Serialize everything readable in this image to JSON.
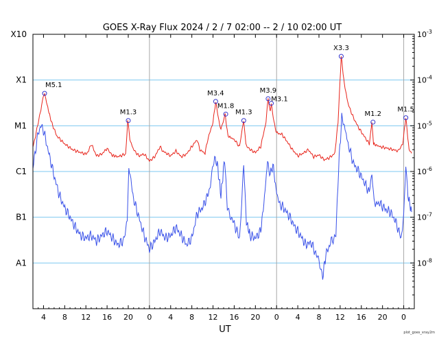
{
  "chart_data": {
    "type": "line",
    "title": "GOES X-Ray Flux   2024 /  2 /  7   02:00 --  2 / 10   02:00   UT",
    "xlabel": "UT",
    "ylabel": "",
    "credit": "plot_goes_xray2m",
    "x_unit": "hours since 2024-02-07 00:00 UT",
    "xlim": [
      2,
      74
    ],
    "x_ticks": [
      {
        "x": 4,
        "label": "4"
      },
      {
        "x": 8,
        "label": "8"
      },
      {
        "x": 12,
        "label": "12"
      },
      {
        "x": 16,
        "label": "16"
      },
      {
        "x": 20,
        "label": "20"
      },
      {
        "x": 24,
        "label": "0"
      },
      {
        "x": 28,
        "label": "4"
      },
      {
        "x": 32,
        "label": "8"
      },
      {
        "x": 36,
        "label": "12"
      },
      {
        "x": 40,
        "label": "16"
      },
      {
        "x": 44,
        "label": "20"
      },
      {
        "x": 48,
        "label": "0"
      },
      {
        "x": 52,
        "label": "4"
      },
      {
        "x": 56,
        "label": "8"
      },
      {
        "x": 60,
        "label": "12"
      },
      {
        "x": 64,
        "label": "16"
      },
      {
        "x": 68,
        "label": "20"
      },
      {
        "x": 72,
        "label": "0"
      }
    ],
    "day_boundaries": [
      24,
      48,
      72
    ],
    "y_scale": "log",
    "ylim": [
      1e-09,
      0.001
    ],
    "y_left_classes": [
      {
        "value": 1e-08,
        "label": "A1"
      },
      {
        "value": 1e-07,
        "label": "B1"
      },
      {
        "value": 1e-06,
        "label": "C1"
      },
      {
        "value": 1e-05,
        "label": "M1"
      },
      {
        "value": 0.0001,
        "label": "X1"
      },
      {
        "value": 0.001,
        "label": "X10"
      }
    ],
    "y_right_ticks": [
      {
        "value": 0.001,
        "base": "10",
        "exp": "-3"
      },
      {
        "value": 0.0001,
        "base": "10",
        "exp": "-4"
      },
      {
        "value": 1e-05,
        "base": "10",
        "exp": "-5"
      },
      {
        "value": 1e-06,
        "base": "10",
        "exp": "-6"
      },
      {
        "value": 1e-07,
        "base": "10",
        "exp": "-7"
      },
      {
        "value": 1e-08,
        "base": "10",
        "exp": "-8"
      }
    ],
    "grid": {
      "horizontal": true,
      "horizontal_color": "#7ec8f0",
      "vertical_color": "#a8a8a8"
    },
    "series": [
      {
        "color": "#e8231a",
        "points": [
          [
            2,
            3.5e-06
          ],
          [
            2.5,
            6e-06
          ],
          [
            3,
            1.2e-05
          ],
          [
            3.5,
            2.2e-05
          ],
          [
            3.8,
            3.5e-05
          ],
          [
            4.2,
            5.1e-05
          ],
          [
            4.8,
            2.5e-05
          ],
          [
            5.5,
            1.2e-05
          ],
          [
            6.5,
            6e-06
          ],
          [
            8,
            4e-06
          ],
          [
            9.5,
            3e-06
          ],
          [
            11,
            2.6e-06
          ],
          [
            12,
            2.4e-06
          ],
          [
            12.5,
            2.8e-06
          ],
          [
            13,
            4e-06
          ],
          [
            13.5,
            3e-06
          ],
          [
            14,
            2.2e-06
          ],
          [
            15,
            2.4e-06
          ],
          [
            16,
            3.2e-06
          ],
          [
            16.8,
            2.3e-06
          ],
          [
            18,
            2.1e-06
          ],
          [
            19.5,
            2.4e-06
          ],
          [
            19.9,
            1.3e-05
          ],
          [
            20.3,
            5e-06
          ],
          [
            21,
            3e-06
          ],
          [
            22,
            2.2e-06
          ],
          [
            23,
            2.4e-06
          ],
          [
            24,
            1.7e-06
          ],
          [
            25,
            2.1e-06
          ],
          [
            26,
            3.5e-06
          ],
          [
            26.5,
            2.8e-06
          ],
          [
            28,
            2.2e-06
          ],
          [
            29,
            2.8e-06
          ],
          [
            30,
            2.1e-06
          ],
          [
            31,
            2.4e-06
          ],
          [
            32,
            3.5e-06
          ],
          [
            33,
            5e-06
          ],
          [
            33.5,
            3e-06
          ],
          [
            34.5,
            2.5e-06
          ],
          [
            35,
            5e-06
          ],
          [
            36,
            1.2e-05
          ],
          [
            36.5,
            3.4e-05
          ],
          [
            37,
            1.5e-05
          ],
          [
            37.5,
            8e-06
          ],
          [
            38.3,
            1.8e-05
          ],
          [
            38.8,
            6e-06
          ],
          [
            40,
            5e-06
          ],
          [
            41,
            3.5e-06
          ],
          [
            41.8,
            1.3e-05
          ],
          [
            42.2,
            4e-06
          ],
          [
            43,
            3e-06
          ],
          [
            44,
            2.6e-06
          ],
          [
            45,
            3.5e-06
          ],
          [
            46,
            1.2e-05
          ],
          [
            46.4,
            3.9e-05
          ],
          [
            46.8,
            2e-05
          ],
          [
            47,
            3.1e-05
          ],
          [
            47.5,
            1.2e-05
          ],
          [
            48,
            7e-06
          ],
          [
            49,
            6.5e-06
          ],
          [
            50,
            4.5e-06
          ],
          [
            51,
            3e-06
          ],
          [
            52,
            2.2e-06
          ],
          [
            53,
            2.5e-06
          ],
          [
            54,
            3e-06
          ],
          [
            55,
            2.1e-06
          ],
          [
            56,
            2.3e-06
          ],
          [
            57,
            1.8e-06
          ],
          [
            58,
            2e-06
          ],
          [
            59,
            2.5e-06
          ],
          [
            59.6,
            1.2e-05
          ],
          [
            60.2,
            0.00033
          ],
          [
            60.8,
            8e-05
          ],
          [
            61.5,
            3e-05
          ],
          [
            62.5,
            1.5e-05
          ],
          [
            63.5,
            9e-06
          ],
          [
            64.5,
            6e-06
          ],
          [
            65.5,
            4e-06
          ],
          [
            66,
            1.2e-05
          ],
          [
            66.3,
            4e-06
          ],
          [
            67.5,
            3.5e-06
          ],
          [
            69,
            3.2e-06
          ],
          [
            70,
            3e-06
          ],
          [
            71,
            2.8e-06
          ],
          [
            71.8,
            4e-06
          ],
          [
            72.4,
            1.5e-05
          ],
          [
            73,
            3e-06
          ],
          [
            73.5,
            2.5e-06
          ]
        ]
      },
      {
        "color": "#3850e8",
        "points": [
          [
            2,
            1.2e-06
          ],
          [
            2.5,
            3e-06
          ],
          [
            3,
            7e-06
          ],
          [
            3.5,
            1e-05
          ],
          [
            4,
            8e-06
          ],
          [
            5,
            2.5e-06
          ],
          [
            6,
            8e-07
          ],
          [
            7,
            3e-07
          ],
          [
            8,
            1.6e-07
          ],
          [
            9,
            1e-07
          ],
          [
            10,
            6e-08
          ],
          [
            11,
            4e-08
          ],
          [
            12,
            3.5e-08
          ],
          [
            13,
            4e-08
          ],
          [
            14,
            3e-08
          ],
          [
            15,
            4e-08
          ],
          [
            16,
            5e-08
          ],
          [
            17,
            3.5e-08
          ],
          [
            18,
            2.5e-08
          ],
          [
            19,
            3e-08
          ],
          [
            19.8,
            7e-08
          ],
          [
            20.1,
            1.5e-06
          ],
          [
            20.5,
            6e-07
          ],
          [
            21,
            2.5e-07
          ],
          [
            22,
            1e-07
          ],
          [
            23,
            4e-08
          ],
          [
            24,
            2e-08
          ],
          [
            25,
            3e-08
          ],
          [
            26,
            5e-08
          ],
          [
            27,
            3.5e-08
          ],
          [
            28,
            4e-08
          ],
          [
            29,
            6e-08
          ],
          [
            30,
            4e-08
          ],
          [
            31,
            2.5e-08
          ],
          [
            32,
            3.5e-08
          ],
          [
            33,
            1.2e-07
          ],
          [
            34,
            1.6e-07
          ],
          [
            35,
            3e-07
          ],
          [
            35.5,
            5e-07
          ],
          [
            36.3,
            2e-06
          ],
          [
            36.8,
            1.5e-06
          ],
          [
            37.5,
            3e-07
          ],
          [
            38.2,
            2e-06
          ],
          [
            38.7,
            1.5e-07
          ],
          [
            39.5,
            1e-07
          ],
          [
            40.5,
            5e-08
          ],
          [
            41,
            3.5e-08
          ],
          [
            41.8,
            1.3e-06
          ],
          [
            42.3,
            8e-08
          ],
          [
            43,
            4e-08
          ],
          [
            44,
            3.5e-08
          ],
          [
            45,
            5e-08
          ],
          [
            45.6,
            2e-07
          ],
          [
            46.3,
            1.7e-06
          ],
          [
            46.8,
            8e-07
          ],
          [
            47.3,
            1.5e-06
          ],
          [
            47.9,
            4e-07
          ],
          [
            48.5,
            2e-07
          ],
          [
            49.5,
            1.5e-07
          ],
          [
            50.5,
            1e-07
          ],
          [
            51.5,
            6e-08
          ],
          [
            52.5,
            4e-08
          ],
          [
            53.5,
            2.5e-08
          ],
          [
            54.5,
            2.8e-08
          ],
          [
            55.5,
            1.5e-08
          ],
          [
            56.3,
            8e-09
          ],
          [
            56.7,
            5e-09
          ],
          [
            57.3,
            1.5e-08
          ],
          [
            58.3,
            3e-08
          ],
          [
            59.2,
            4e-08
          ],
          [
            59.7,
            1.2e-06
          ],
          [
            60.3,
            1.5e-05
          ],
          [
            60.8,
            1e-05
          ],
          [
            61.5,
            4e-06
          ],
          [
            62.5,
            1.5e-06
          ],
          [
            63.5,
            1e-06
          ],
          [
            64.5,
            6e-07
          ],
          [
            65.5,
            3.5e-07
          ],
          [
            66,
            1e-06
          ],
          [
            66.4,
            2e-07
          ],
          [
            67.5,
            2e-07
          ],
          [
            68.5,
            1.5e-07
          ],
          [
            69.5,
            1.3e-07
          ],
          [
            70.5,
            8e-08
          ],
          [
            71.5,
            3.5e-08
          ],
          [
            72,
            1e-07
          ],
          [
            72.4,
            1.5e-06
          ],
          [
            72.8,
            3e-07
          ],
          [
            73.5,
            1.3e-07
          ]
        ]
      }
    ],
    "annotations": [
      {
        "x": 4.2,
        "y": 5.1e-05,
        "label": "M5.1",
        "anchor": "start"
      },
      {
        "x": 20.0,
        "y": 1.3e-05,
        "label": "M1.3",
        "anchor": "middle"
      },
      {
        "x": 36.5,
        "y": 3.4e-05,
        "label": "M3.4",
        "anchor": "middle"
      },
      {
        "x": 38.4,
        "y": 1.8e-05,
        "label": "M1.8",
        "anchor": "middle"
      },
      {
        "x": 41.8,
        "y": 1.3e-05,
        "label": "M1.3",
        "anchor": "middle"
      },
      {
        "x": 46.4,
        "y": 3.9e-05,
        "label": "M3.9",
        "anchor": "middle"
      },
      {
        "x": 47.0,
        "y": 3.1e-05,
        "label": "M3.1",
        "anchor": "middle"
      },
      {
        "x": 60.2,
        "y": 0.00033,
        "label": "X3.3",
        "anchor": "middle"
      },
      {
        "x": 66.2,
        "y": 1.2e-05,
        "label": "M1.2",
        "anchor": "middle"
      },
      {
        "x": 72.4,
        "y": 1.5e-05,
        "label": "M1.5",
        "anchor": "middle"
      }
    ]
  }
}
